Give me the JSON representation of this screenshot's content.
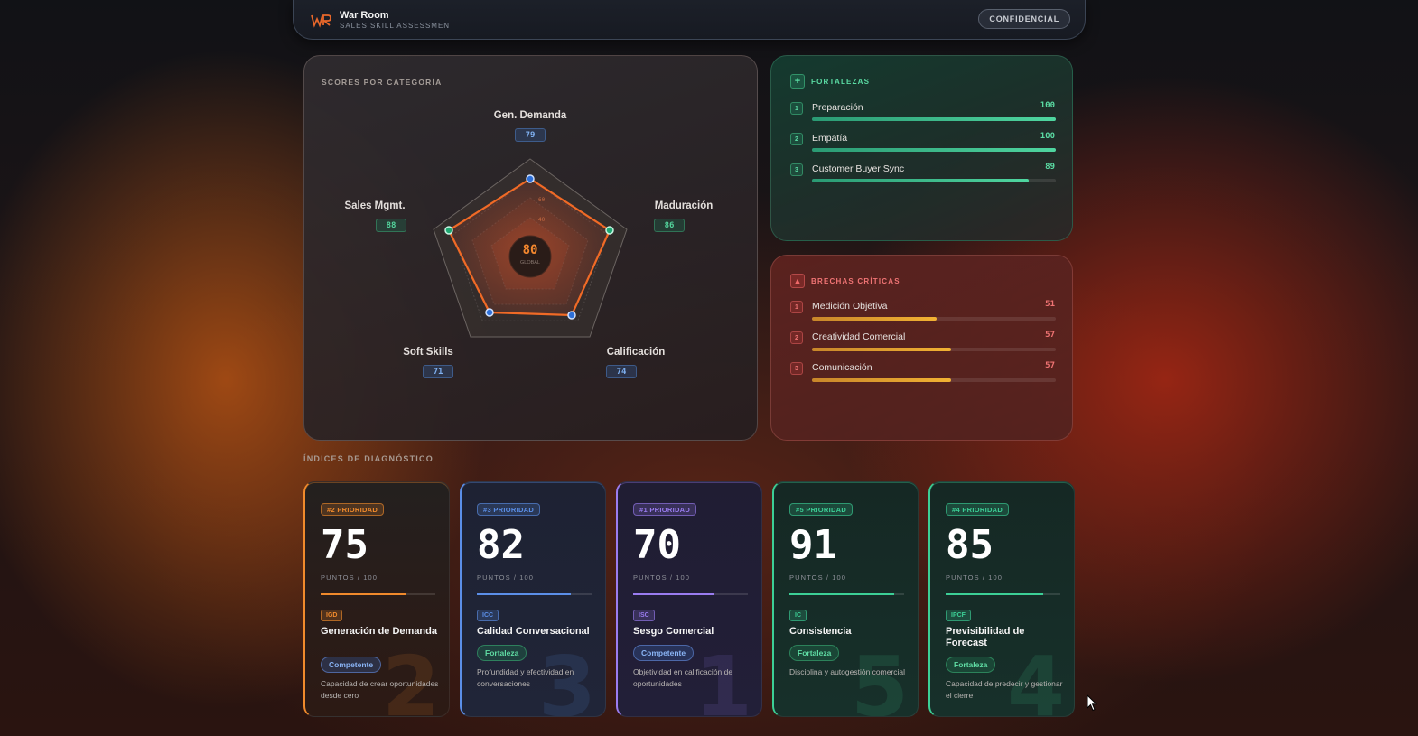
{
  "header": {
    "title": "War Room",
    "subtitle": "SALES SKILL ASSESSMENT",
    "badge": "CONFIDENCIAL"
  },
  "radar": {
    "title": "SCORES POR CATEGORÍA",
    "global_score": "80",
    "global_label": "GLOBAL",
    "ring_labels": [
      "60",
      "40"
    ],
    "axes": [
      {
        "label": "Gen. Demanda",
        "value": "79"
      },
      {
        "label": "Maduración",
        "value": "86"
      },
      {
        "label": "Calificación",
        "value": "74"
      },
      {
        "label": "Soft Skills",
        "value": "71"
      },
      {
        "label": "Sales Mgmt.",
        "value": "88"
      }
    ]
  },
  "strengths": {
    "title": "FORTALEZAS",
    "icon": "plus-icon",
    "items": [
      {
        "rank": "1",
        "label": "Preparación",
        "value": "100",
        "pct": 100
      },
      {
        "rank": "2",
        "label": "Empatía",
        "value": "100",
        "pct": 100
      },
      {
        "rank": "3",
        "label": "Customer Buyer Sync",
        "value": "89",
        "pct": 89
      }
    ]
  },
  "gaps": {
    "title": "BRECHAS CRÍTICAS",
    "icon": "warning-triangle-icon",
    "items": [
      {
        "rank": "1",
        "label": "Medición Objetiva",
        "value": "51",
        "pct": 51
      },
      {
        "rank": "2",
        "label": "Creatividad Comercial",
        "value": "57",
        "pct": 57
      },
      {
        "rank": "3",
        "label": "Comunicación",
        "value": "57",
        "pct": 57
      }
    ]
  },
  "indices": {
    "title": "ÍNDICES DE DIAGNÓSTICO",
    "unit_label": "PUNTOS / 100",
    "cards": [
      {
        "priority": "#2 PRIORIDAD",
        "rank_digit": "2",
        "score": "75",
        "code": "IGD",
        "name": "Generación de Demanda",
        "status": "Competente",
        "desc": "Capacidad de crear oportunidades desde cero",
        "accent": "#f08a2c"
      },
      {
        "priority": "#3 PRIORIDAD",
        "rank_digit": "3",
        "score": "82",
        "code": "ICC",
        "name": "Calidad Conversacional",
        "status": "Fortaleza",
        "desc": "Profundidad y efectividad en conversaciones",
        "accent": "#5b8fe8"
      },
      {
        "priority": "#1 PRIORIDAD",
        "rank_digit": "1",
        "score": "70",
        "code": "ISC",
        "name": "Sesgo Comercial",
        "status": "Competente",
        "desc": "Objetividad en calificación de oportunidades",
        "accent": "#9a7cf0"
      },
      {
        "priority": "#5 PRIORIDAD",
        "rank_digit": "5",
        "score": "91",
        "code": "IC",
        "name": "Consistencia",
        "status": "Fortaleza",
        "desc": "Disciplina y autogestión comercial",
        "accent": "#3ccf96"
      },
      {
        "priority": "#4 PRIORIDAD",
        "rank_digit": "4",
        "score": "85",
        "code": "IPCF",
        "name": "Previsibilidad de Forecast",
        "status": "Fortaleza",
        "desc": "Capacidad de predecir y gestionar el cierre",
        "accent": "#3ccf96"
      }
    ]
  }
}
